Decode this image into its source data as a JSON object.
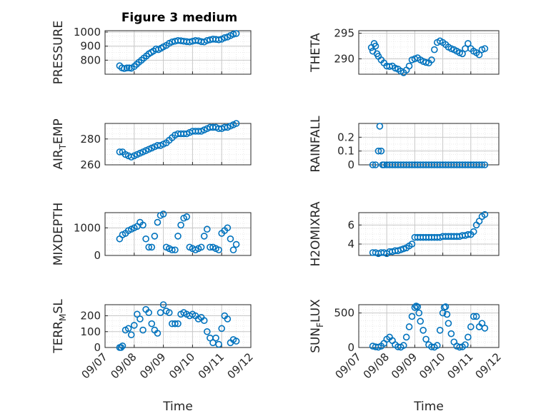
{
  "figure_title": "Figure 3 medium",
  "colors": {
    "marker": "#0072BD",
    "axis": "#262626",
    "grid": "#c8c8c8",
    "minor_grid": "#e4e4e4"
  },
  "chart_data": [
    {
      "type": "scatter",
      "column": "left",
      "row": 0,
      "ylabel": {
        "main": "PRESSURE",
        "sub": ""
      },
      "yticks": [
        "800",
        "900",
        "1000"
      ],
      "ylim": [
        700,
        1010
      ],
      "ytick_values": [
        800,
        900,
        1000
      ],
      "xlim": [
        "09/07",
        "09/12"
      ],
      "grid": true,
      "x": [
        0.5,
        0.58,
        0.66,
        0.75,
        0.83,
        0.9,
        1.0,
        1.08,
        1.16,
        1.25,
        1.33,
        1.42,
        1.5,
        1.58,
        1.66,
        1.75,
        1.83,
        1.92,
        2.0,
        2.1,
        2.2,
        2.3,
        2.4,
        2.5,
        2.6,
        2.7,
        2.8,
        2.9,
        3.0,
        3.1,
        3.2,
        3.3,
        3.4,
        3.5,
        3.6,
        3.7,
        3.8,
        3.9,
        4.0,
        4.1,
        4.2,
        4.3,
        4.4,
        4.5
      ],
      "y": [
        760,
        745,
        740,
        745,
        745,
        742,
        755,
        770,
        785,
        800,
        815,
        830,
        845,
        855,
        865,
        880,
        875,
        885,
        895,
        905,
        920,
        930,
        935,
        940,
        938,
        935,
        932,
        930,
        935,
        940,
        938,
        932,
        930,
        940,
        945,
        950,
        948,
        945,
        950,
        960,
        965,
        975,
        985,
        990
      ]
    },
    {
      "type": "scatter",
      "column": "right",
      "row": 0,
      "ylabel": {
        "main": "THETA",
        "sub": ""
      },
      "yticks": [
        "290",
        "295"
      ],
      "ylim": [
        287,
        295.5
      ],
      "ytick_values": [
        290,
        295
      ],
      "xlim": [
        "09/07",
        "09/12"
      ],
      "grid": true,
      "x": [
        0.45,
        0.5,
        0.55,
        0.6,
        0.65,
        0.7,
        0.8,
        0.9,
        1.0,
        1.1,
        1.2,
        1.3,
        1.4,
        1.5,
        1.6,
        1.7,
        1.8,
        1.9,
        2.0,
        2.1,
        2.2,
        2.3,
        2.4,
        2.5,
        2.6,
        2.7,
        2.8,
        2.9,
        3.0,
        3.1,
        3.2,
        3.3,
        3.4,
        3.5,
        3.6,
        3.7,
        3.8,
        3.9,
        4.0,
        4.1,
        4.2,
        4.3,
        4.4,
        4.5
      ],
      "y": [
        292.2,
        291.5,
        293.0,
        292.5,
        291.0,
        290.5,
        289.8,
        289.2,
        288.6,
        288.5,
        288.6,
        288.2,
        288.0,
        287.6,
        287.3,
        287.8,
        288.6,
        289.8,
        290.0,
        290.2,
        289.8,
        289.5,
        289.3,
        289.2,
        289.8,
        291.8,
        293.2,
        293.5,
        293.2,
        292.8,
        292.3,
        292.0,
        291.8,
        291.5,
        291.2,
        291.0,
        292.0,
        293.0,
        292.0,
        291.5,
        291.2,
        290.8,
        291.8,
        292.0
      ]
    },
    {
      "type": "scatter",
      "column": "left",
      "row": 1,
      "ylabel": {
        "main": "AIR",
        "sub": "T",
        "rest": "EMP"
      },
      "yticks": [
        "260",
        "280"
      ],
      "ylim": [
        260,
        292
      ],
      "ytick_values": [
        260,
        280
      ],
      "xlim": [
        "09/07",
        "09/12"
      ],
      "grid": true,
      "x": [
        0.5,
        0.6,
        0.7,
        0.8,
        0.9,
        1.0,
        1.1,
        1.2,
        1.3,
        1.4,
        1.5,
        1.6,
        1.7,
        1.8,
        1.9,
        2.0,
        2.1,
        2.2,
        2.3,
        2.4,
        2.5,
        2.6,
        2.7,
        2.8,
        2.9,
        3.0,
        3.1,
        3.2,
        3.3,
        3.4,
        3.5,
        3.6,
        3.7,
        3.8,
        3.9,
        4.0,
        4.1,
        4.2,
        4.3,
        4.4,
        4.5
      ],
      "y": [
        270,
        270,
        268,
        267,
        266,
        267,
        268,
        269,
        270,
        271,
        272,
        273,
        274,
        275,
        275,
        276,
        277,
        279,
        281,
        283,
        284,
        284,
        284,
        284,
        285,
        286,
        286,
        286,
        286,
        287,
        288,
        289,
        289,
        289,
        288,
        288,
        289,
        289,
        290,
        291,
        292
      ]
    },
    {
      "type": "scatter",
      "column": "right",
      "row": 1,
      "ylabel": {
        "main": "RAINFALL",
        "sub": ""
      },
      "yticks": [
        "0",
        "0.1",
        "0.2"
      ],
      "ylim": [
        0,
        0.3
      ],
      "ytick_values": [
        0,
        0.1,
        0.2
      ],
      "xlim": [
        "09/07",
        "09/12"
      ],
      "grid": true,
      "x": [
        0.7,
        0.75,
        0.8,
        0.85,
        0.5,
        0.6,
        0.9,
        1.0,
        1.1,
        1.2,
        1.3,
        1.4,
        1.5,
        1.6,
        1.7,
        1.8,
        1.9,
        2.0,
        2.1,
        2.2,
        2.3,
        2.4,
        2.5,
        2.6,
        2.7,
        2.8,
        2.9,
        3.0,
        3.1,
        3.2,
        3.3,
        3.4,
        3.5,
        3.6,
        3.7,
        3.8,
        3.9,
        4.0,
        4.1,
        4.2,
        4.3,
        4.4,
        4.5
      ],
      "y": [
        0.1,
        0.28,
        0.1,
        0,
        0,
        0,
        0,
        0,
        0,
        0,
        0,
        0,
        0,
        0,
        0,
        0,
        0,
        0,
        0,
        0,
        0,
        0,
        0,
        0,
        0,
        0,
        0,
        0,
        0,
        0,
        0,
        0,
        0,
        0,
        0,
        0,
        0,
        0,
        0,
        0,
        0,
        0,
        0
      ]
    },
    {
      "type": "scatter",
      "column": "left",
      "row": 2,
      "ylabel": {
        "main": "MIXDEPTH",
        "sub": ""
      },
      "yticks": [
        "0",
        "1000"
      ],
      "ylim": [
        0,
        1550
      ],
      "ytick_values": [
        0,
        1000
      ],
      "xlim": [
        "09/07",
        "09/12"
      ],
      "grid": true,
      "x": [
        0.5,
        0.6,
        0.7,
        0.8,
        0.9,
        1.0,
        1.1,
        1.2,
        1.3,
        1.4,
        1.5,
        1.6,
        1.7,
        1.8,
        1.9,
        2.0,
        2.1,
        2.2,
        2.3,
        2.4,
        2.5,
        2.6,
        2.7,
        2.8,
        2.9,
        3.0,
        3.1,
        3.2,
        3.3,
        3.4,
        3.5,
        3.6,
        3.7,
        3.8,
        3.9,
        4.0,
        4.1,
        4.2,
        4.3,
        4.4,
        4.5
      ],
      "y": [
        600,
        750,
        800,
        900,
        950,
        1000,
        1050,
        1200,
        1100,
        600,
        300,
        300,
        700,
        1200,
        1450,
        1500,
        300,
        250,
        200,
        200,
        700,
        1100,
        1350,
        1400,
        300,
        250,
        200,
        250,
        300,
        700,
        950,
        300,
        300,
        250,
        200,
        800,
        900,
        1000,
        600,
        200,
        400
      ]
    },
    {
      "type": "scatter",
      "column": "right",
      "row": 2,
      "ylabel": {
        "main": "H2OMIXRA",
        "sub": ""
      },
      "yticks": [
        "4",
        "6"
      ],
      "ylim": [
        2.8,
        7.3
      ],
      "ytick_values": [
        4,
        6
      ],
      "xlim": [
        "09/07",
        "09/12"
      ],
      "grid": true,
      "x": [
        0.5,
        0.6,
        0.7,
        0.8,
        0.9,
        1.0,
        1.1,
        1.2,
        1.3,
        1.4,
        1.5,
        1.6,
        1.7,
        1.8,
        1.9,
        2.0,
        2.1,
        2.2,
        2.3,
        2.4,
        2.5,
        2.6,
        2.7,
        2.8,
        2.9,
        3.0,
        3.1,
        3.2,
        3.3,
        3.4,
        3.5,
        3.6,
        3.7,
        3.8,
        3.9,
        4.0,
        4.1,
        4.2,
        4.3,
        4.4,
        4.5
      ],
      "y": [
        3.1,
        3.1,
        3.0,
        3.1,
        3.1,
        3.0,
        3.2,
        3.2,
        3.3,
        3.3,
        3.4,
        3.5,
        3.6,
        3.8,
        4.0,
        4.7,
        4.7,
        4.7,
        4.7,
        4.7,
        4.7,
        4.7,
        4.7,
        4.7,
        4.7,
        4.8,
        4.8,
        4.8,
        4.8,
        4.8,
        4.8,
        4.8,
        4.9,
        4.9,
        5.0,
        5.0,
        5.3,
        6.0,
        6.4,
        6.9,
        7.1
      ]
    },
    {
      "type": "scatter",
      "column": "left",
      "row": 3,
      "ylabel": {
        "main": "TERR",
        "sub": "M",
        "rest": "SL"
      },
      "yticks": [
        "0",
        "100",
        "200"
      ],
      "ylim": [
        0,
        270
      ],
      "ytick_values": [
        0,
        100,
        200
      ],
      "xlim": [
        "09/07",
        "09/12"
      ],
      "grid": true,
      "x": [
        0.5,
        0.55,
        0.6,
        0.7,
        0.8,
        0.9,
        1.0,
        1.1,
        1.2,
        1.3,
        1.4,
        1.5,
        1.6,
        1.7,
        1.8,
        1.9,
        2.0,
        2.1,
        2.2,
        2.3,
        2.4,
        2.5,
        2.6,
        2.7,
        2.8,
        2.9,
        3.0,
        3.1,
        3.2,
        3.3,
        3.4,
        3.5,
        3.6,
        3.7,
        3.8,
        3.9,
        4.0,
        4.1,
        4.2,
        4.3,
        4.4,
        4.5
      ],
      "y": [
        0,
        0,
        10,
        110,
        120,
        80,
        140,
        210,
        180,
        110,
        240,
        220,
        150,
        110,
        90,
        220,
        270,
        230,
        220,
        150,
        150,
        150,
        210,
        220,
        210,
        200,
        210,
        200,
        180,
        190,
        170,
        100,
        60,
        30,
        60,
        20,
        120,
        200,
        180,
        30,
        50,
        40
      ]
    },
    {
      "type": "scatter",
      "column": "right",
      "row": 3,
      "ylabel": {
        "main": "SUN",
        "sub": "F",
        "rest": "LUX"
      },
      "yticks": [
        "0",
        "500"
      ],
      "ylim": [
        0,
        620
      ],
      "ytick_values": [
        0,
        500
      ],
      "xlim": [
        "09/07",
        "09/12"
      ],
      "grid": true,
      "x": [
        0.5,
        0.6,
        0.7,
        0.8,
        0.9,
        1.0,
        1.1,
        1.2,
        1.3,
        1.4,
        1.5,
        1.6,
        1.7,
        1.8,
        1.9,
        2.0,
        2.05,
        2.1,
        2.15,
        2.2,
        2.3,
        2.4,
        2.5,
        2.6,
        2.7,
        2.8,
        2.9,
        3.0,
        3.05,
        3.1,
        3.15,
        3.2,
        3.3,
        3.4,
        3.5,
        3.6,
        3.7,
        3.8,
        3.9,
        4.0,
        4.1,
        4.2,
        4.3,
        4.4,
        4.5
      ],
      "y": [
        20,
        10,
        5,
        20,
        60,
        120,
        150,
        100,
        40,
        10,
        5,
        30,
        150,
        300,
        450,
        580,
        600,
        590,
        500,
        380,
        250,
        120,
        40,
        10,
        5,
        30,
        250,
        500,
        580,
        590,
        480,
        350,
        200,
        80,
        20,
        5,
        10,
        40,
        150,
        300,
        450,
        450,
        300,
        350,
        280
      ]
    }
  ],
  "xticks": [
    "09/07",
    "09/08",
    "09/09",
    "09/10",
    "09/11",
    "09/12"
  ],
  "xlabel": "Time"
}
